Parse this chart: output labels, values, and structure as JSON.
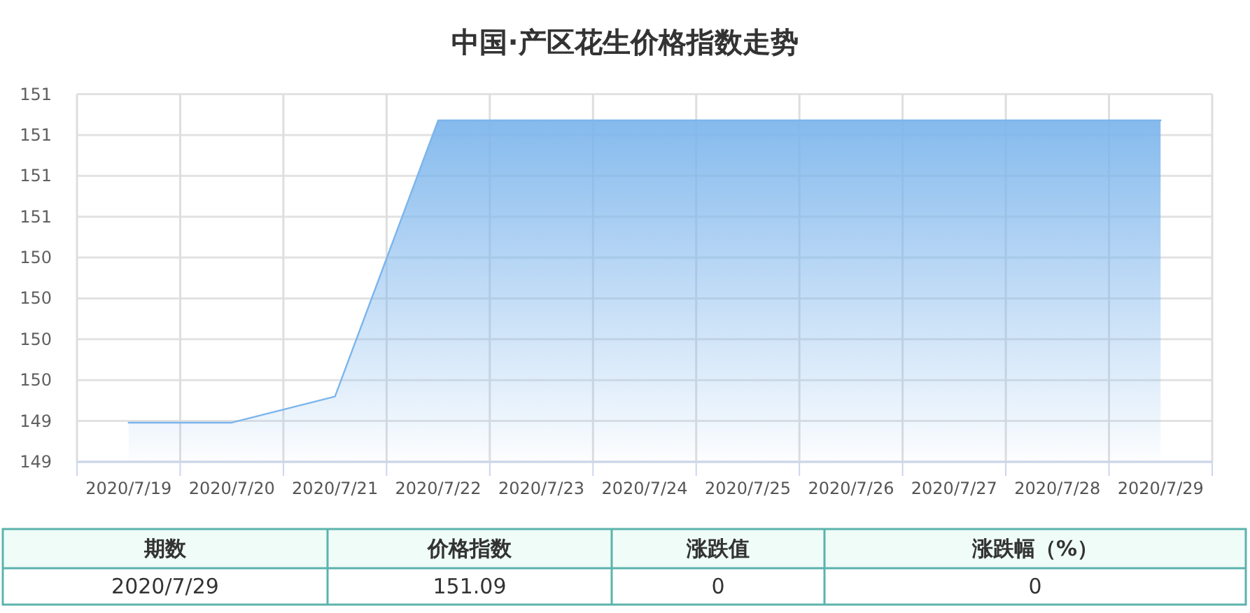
{
  "chart_data": {
    "type": "area",
    "title": "中国·产区花生价格指数走势",
    "categories": [
      "2020/7/19",
      "2020/7/20",
      "2020/7/21",
      "2020/7/22",
      "2020/7/23",
      "2020/7/24",
      "2020/7/25",
      "2020/7/26",
      "2020/7/27",
      "2020/7/28",
      "2020/7/29"
    ],
    "values": [
      149.24,
      149.24,
      149.4,
      151.09,
      151.09,
      151.09,
      151.09,
      151.09,
      151.09,
      151.09,
      151.09
    ],
    "color": "#7cb5ec",
    "ylim": [
      149,
      151.25
    ],
    "yticks": [
      {
        "value": 149,
        "label": "149"
      },
      {
        "value": 149.25,
        "label": "149"
      },
      {
        "value": 149.5,
        "label": "150"
      },
      {
        "value": 149.75,
        "label": "150"
      },
      {
        "value": 150,
        "label": "150"
      },
      {
        "value": 150.25,
        "label": "150"
      },
      {
        "value": 150.5,
        "label": "151"
      },
      {
        "value": 150.75,
        "label": "151"
      },
      {
        "value": 151,
        "label": "151"
      },
      {
        "value": 151.25,
        "label": "151"
      }
    ],
    "grid": true,
    "annotations": [
      "期数",
      "价格指数",
      "涨跌值",
      "涨跌幅（%）",
      "2020/7/29",
      "151.09",
      "0",
      "0"
    ]
  }
}
